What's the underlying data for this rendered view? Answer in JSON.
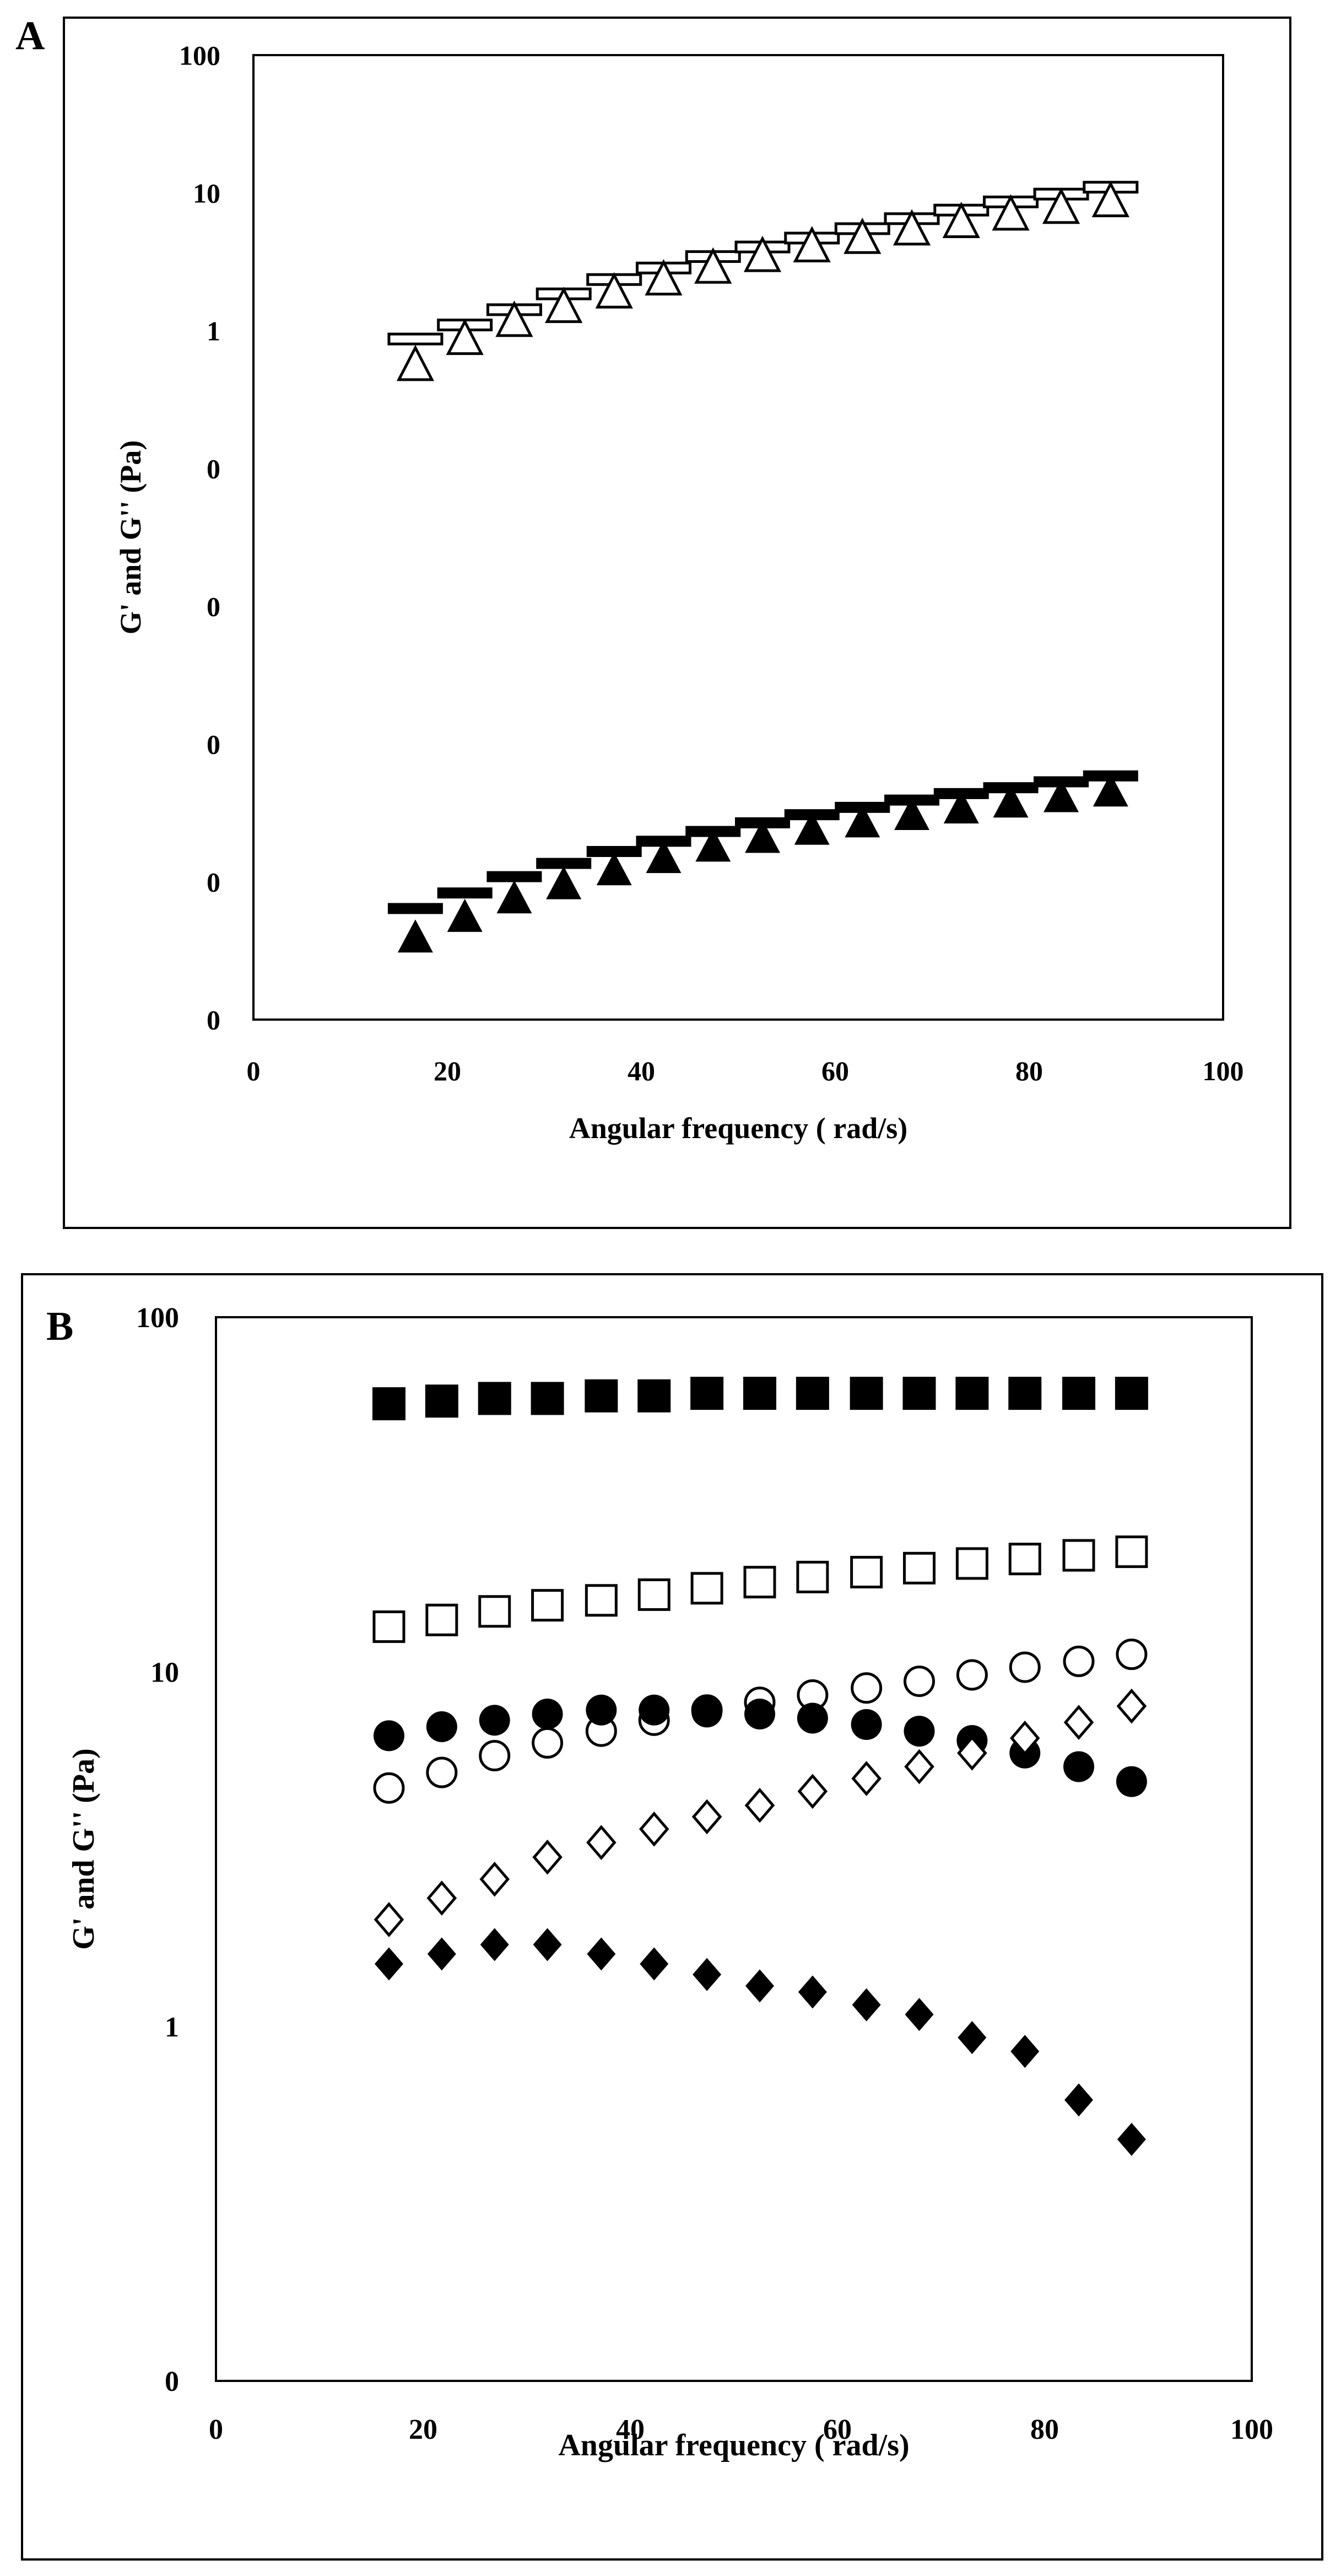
{
  "chart_data": [
    {
      "panel": "A",
      "type": "scatter",
      "scale_y": "log",
      "xlabel": "Angular frequency ( rad/s)",
      "ylabel": "G' and G'' (Pa)",
      "xlim": [
        0,
        100
      ],
      "ylim_decades": [
        -5,
        2
      ],
      "x_ticks": [
        0,
        20,
        40,
        60,
        80,
        100
      ],
      "y_tick_labels": [
        "0",
        "0",
        "0",
        "0",
        "0",
        "1",
        "10",
        "100"
      ],
      "x": [
        16.7,
        21.8,
        26.9,
        32.0,
        37.2,
        42.3,
        47.4,
        52.5,
        57.6,
        62.8,
        67.9,
        73.0,
        78.1,
        83.3,
        88.4
      ],
      "series": [
        {
          "name": "G' (open bar)",
          "marker": "bar-open",
          "values": [
            0.87,
            1.1,
            1.42,
            1.85,
            2.35,
            2.85,
            3.45,
            4.05,
            4.7,
            5.5,
            6.5,
            7.5,
            8.6,
            9.8,
            11.0
          ]
        },
        {
          "name": "G'' (open triangle)",
          "marker": "triangle-open",
          "values": [
            0.55,
            0.85,
            1.15,
            1.45,
            1.85,
            2.3,
            2.8,
            3.4,
            4.0,
            4.6,
            5.3,
            6.0,
            6.8,
            7.6,
            8.5
          ]
        },
        {
          "name": "G' (filled bar)",
          "marker": "bar-filled",
          "values": [
            6.4e-05,
            8.3e-05,
            0.000109,
            0.000136,
            0.000166,
            0.000197,
            0.000232,
            0.000268,
            0.000307,
            0.000347,
            0.000392,
            0.000437,
            0.000482,
            0.000532,
            0.000587
          ]
        },
        {
          "name": "G'' (filled triangle)",
          "marker": "triangle-filled",
          "values": [
            3.9e-05,
            5.5e-05,
            7.5e-05,
            9.5e-05,
            0.00012,
            0.000147,
            0.000178,
            0.000206,
            0.000236,
            0.000267,
            0.000302,
            0.000337,
            0.000372,
            0.000407,
            0.000447
          ]
        }
      ]
    },
    {
      "panel": "B",
      "type": "scatter",
      "scale_y": "log",
      "xlabel": "Angular frequency ( rad/s)",
      "ylabel": "G' and G'' (Pa)",
      "xlim": [
        0,
        100
      ],
      "ylim_decades": [
        -1,
        2
      ],
      "x_ticks": [
        0,
        20,
        40,
        60,
        80,
        100
      ],
      "y_tick_labels": [
        "0",
        "1",
        "10",
        "100"
      ],
      "x": [
        16.7,
        21.8,
        26.9,
        32.0,
        37.2,
        42.3,
        47.4,
        52.5,
        57.6,
        62.8,
        67.9,
        73.0,
        78.1,
        83.3,
        88.4
      ],
      "series": [
        {
          "name": "filled square",
          "marker": "square-filled",
          "values": [
            57,
            58,
            59,
            59,
            60,
            60,
            61,
            61,
            61,
            61,
            61,
            61,
            61,
            61,
            61
          ]
        },
        {
          "name": "open square",
          "marker": "square-open",
          "values": [
            13.4,
            14.0,
            14.8,
            15.4,
            15.9,
            16.5,
            17.2,
            17.9,
            18.5,
            19.1,
            19.6,
            20.2,
            20.8,
            21.3,
            21.8
          ]
        },
        {
          "name": "open circle",
          "marker": "circle-open",
          "values": [
            4.7,
            5.2,
            5.8,
            6.3,
            6.8,
            7.3,
            7.8,
            8.2,
            8.6,
            9.0,
            9.4,
            9.8,
            10.3,
            10.7,
            11.2
          ]
        },
        {
          "name": "filled circle",
          "marker": "circle-filled",
          "values": [
            6.6,
            7.0,
            7.3,
            7.6,
            7.8,
            7.8,
            7.7,
            7.6,
            7.4,
            7.1,
            6.8,
            6.4,
            5.9,
            5.4,
            4.9
          ]
        },
        {
          "name": "open diamond",
          "marker": "diamond-open",
          "values": [
            2.0,
            2.3,
            2.6,
            3.0,
            3.3,
            3.6,
            3.9,
            4.2,
            4.6,
            5.0,
            5.4,
            5.9,
            6.5,
            7.2,
            8.0
          ]
        },
        {
          "name": "filled diamond",
          "marker": "diamond-filled",
          "values": [
            1.5,
            1.6,
            1.7,
            1.7,
            1.6,
            1.5,
            1.4,
            1.3,
            1.25,
            1.15,
            1.08,
            0.93,
            0.85,
            0.62,
            0.48
          ]
        }
      ]
    }
  ],
  "panels": {
    "a": {
      "label": "A"
    },
    "b": {
      "label": "B"
    }
  }
}
